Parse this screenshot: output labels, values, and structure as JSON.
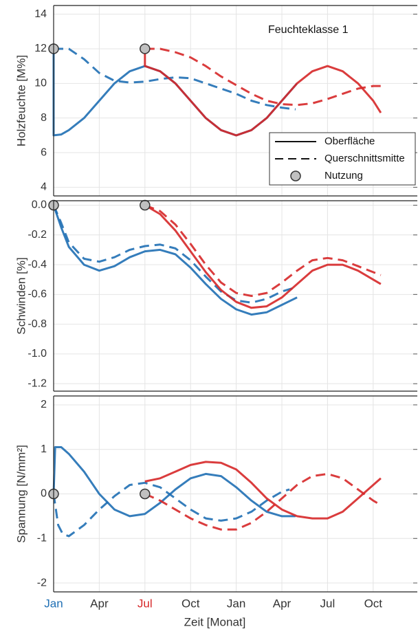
{
  "chart_data": [
    {
      "type": "line",
      "ylabel": "Holzfeuchte [M%]",
      "annotation": "Feuchteklasse 1",
      "xlim": [
        0,
        23.9
      ],
      "ylim": [
        3.5,
        14.5
      ],
      "yticks": [
        4,
        6,
        8,
        10,
        12,
        14
      ],
      "grid": true,
      "legend": {
        "position": "lower right",
        "entries": [
          {
            "label": "Oberfläche",
            "line": "solid"
          },
          {
            "label": "Querschnittsmitte",
            "line": "dashed"
          },
          {
            "label": "Nutzung",
            "marker": "circle"
          }
        ]
      },
      "series": [
        {
          "color": "#1f6fb4",
          "dash": "solid",
          "x": [
            0,
            0,
            0.5,
            1,
            2,
            3,
            4,
            5,
            6,
            7,
            8,
            9,
            10,
            11,
            12,
            13,
            14,
            15,
            16
          ],
          "values": [
            12,
            7,
            7.05,
            7.3,
            8.0,
            9.0,
            10.0,
            10.7,
            11.0,
            10.7,
            10.0,
            9.0,
            8.0,
            7.3,
            7.0,
            7.3,
            8.0,
            9.0,
            10.0
          ]
        },
        {
          "color": "#1f6fb4",
          "dash": "dashed",
          "x": [
            0,
            1,
            2,
            3,
            4,
            5,
            6,
            7,
            8,
            9,
            10,
            11,
            12,
            13,
            14,
            15,
            15.9
          ],
          "values": [
            12,
            12,
            11.4,
            10.6,
            10.15,
            10.05,
            10.1,
            10.25,
            10.35,
            10.3,
            10.0,
            9.7,
            9.4,
            9.0,
            8.75,
            8.6,
            8.5
          ]
        },
        {
          "color": "#d62728",
          "dash": "solid",
          "x": [
            6,
            6,
            7,
            8,
            9,
            10,
            11,
            12,
            13,
            14,
            15,
            16,
            17,
            18,
            19,
            20,
            21,
            21.5
          ],
          "values": [
            12,
            11.0,
            10.7,
            10.0,
            9.0,
            8.0,
            7.3,
            7.0,
            7.3,
            8.0,
            9.0,
            10.0,
            10.7,
            11.0,
            10.7,
            10.0,
            9.0,
            8.3
          ]
        },
        {
          "color": "#d62728",
          "dash": "dashed",
          "x": [
            6,
            7,
            8,
            9,
            10,
            11,
            12,
            13,
            14,
            15,
            16,
            17,
            18,
            19,
            20,
            21,
            21.5
          ],
          "values": [
            12,
            12.0,
            11.8,
            11.5,
            11.0,
            10.4,
            9.9,
            9.4,
            9.0,
            8.8,
            8.75,
            8.85,
            9.1,
            9.4,
            9.7,
            9.85,
            9.85
          ]
        },
        {
          "color": "#c0c0c0",
          "marker": "circle",
          "x": [
            0,
            6
          ],
          "values": [
            12,
            12
          ]
        }
      ]
    },
    {
      "type": "line",
      "ylabel": "Schwinden [%]",
      "xlim": [
        0,
        23.9
      ],
      "ylim": [
        -1.25,
        0.03
      ],
      "grid": true,
      "yticks": [
        {
          "value": 0,
          "label": "0.0"
        },
        {
          "value": -0.2,
          "label": "-0.2"
        },
        {
          "value": -0.4,
          "label": "-0.4"
        },
        {
          "value": -0.6,
          "label": "-0.6"
        },
        {
          "value": -0.8,
          "label": "-0.8"
        },
        {
          "value": -1.0,
          "label": "-1.0"
        },
        {
          "value": -1.2,
          "label": "-1.2"
        }
      ],
      "series": [
        {
          "color": "#1f6fb4",
          "dash": "solid",
          "x": [
            0,
            0.5,
            1,
            2,
            3,
            4,
            5,
            6,
            7,
            8,
            9,
            10,
            11,
            12,
            13,
            14,
            15,
            16
          ],
          "values": [
            0,
            -0.15,
            -0.28,
            -0.4,
            -0.44,
            -0.41,
            -0.35,
            -0.31,
            -0.3,
            -0.33,
            -0.42,
            -0.53,
            -0.63,
            -0.7,
            -0.735,
            -0.72,
            -0.67,
            -0.62
          ]
        },
        {
          "color": "#1f6fb4",
          "dash": "dashed",
          "x": [
            0,
            0.5,
            1,
            2,
            3,
            4,
            5,
            6,
            7,
            8,
            9,
            10,
            11,
            12,
            13,
            14,
            15,
            16
          ],
          "values": [
            0,
            -0.12,
            -0.25,
            -0.36,
            -0.38,
            -0.35,
            -0.3,
            -0.275,
            -0.265,
            -0.29,
            -0.37,
            -0.48,
            -0.58,
            -0.64,
            -0.655,
            -0.63,
            -0.58,
            -0.55
          ]
        },
        {
          "color": "#d62728",
          "dash": "solid",
          "x": [
            6,
            7,
            8,
            9,
            10,
            11,
            12,
            13,
            14,
            15,
            16,
            17,
            18,
            19,
            20,
            21,
            21.5
          ],
          "values": [
            0,
            -0.06,
            -0.17,
            -0.31,
            -0.45,
            -0.57,
            -0.65,
            -0.69,
            -0.68,
            -0.62,
            -0.53,
            -0.44,
            -0.4,
            -0.4,
            -0.44,
            -0.5,
            -0.53
          ]
        },
        {
          "color": "#d62728",
          "dash": "dashed",
          "x": [
            6,
            7,
            8,
            9,
            10,
            11,
            12,
            13,
            14,
            15,
            16,
            17,
            18,
            19,
            20,
            21,
            21.5
          ],
          "values": [
            0,
            -0.04,
            -0.13,
            -0.26,
            -0.4,
            -0.52,
            -0.59,
            -0.61,
            -0.59,
            -0.52,
            -0.44,
            -0.37,
            -0.355,
            -0.37,
            -0.41,
            -0.45,
            -0.47
          ]
        },
        {
          "color": "#c0c0c0",
          "marker": "circle",
          "x": [
            0,
            6
          ],
          "values": [
            0,
            0
          ]
        }
      ]
    },
    {
      "type": "line",
      "ylabel": "Spannung [N/mm²]",
      "xlabel": "Zeit [Monat]",
      "xlim": [
        0,
        23.9
      ],
      "ylim": [
        -2.2,
        2.2
      ],
      "yticks": [
        -2,
        -1,
        0,
        1,
        2
      ],
      "grid": true,
      "xticks": [
        {
          "value": 0,
          "label": "Jan"
        },
        {
          "value": 3,
          "label": "Apr"
        },
        {
          "value": 6,
          "label": "Jul"
        },
        {
          "value": 9,
          "label": "Oct"
        },
        {
          "value": 12,
          "label": "Jan"
        },
        {
          "value": 15,
          "label": "Apr"
        },
        {
          "value": 18,
          "label": "Jul"
        },
        {
          "value": 21,
          "label": "Oct"
        }
      ],
      "xtick_colors": [
        "#1f6fb4",
        "#333333",
        "#d62728",
        "#333333",
        "#333333",
        "#333333",
        "#333333",
        "#333333"
      ],
      "series": [
        {
          "color": "#1f6fb4",
          "dash": "solid",
          "x": [
            0,
            0.1,
            0.5,
            1,
            2,
            3,
            4,
            5,
            6,
            7,
            8,
            9,
            10,
            11,
            12,
            13,
            14,
            15,
            15.9
          ],
          "values": [
            0,
            1.05,
            1.05,
            0.9,
            0.5,
            0.0,
            -0.35,
            -0.5,
            -0.45,
            -0.2,
            0.1,
            0.35,
            0.45,
            0.4,
            0.15,
            -0.15,
            -0.4,
            -0.5,
            -0.5
          ]
        },
        {
          "color": "#1f6fb4",
          "dash": "dashed",
          "x": [
            0,
            0.3,
            0.6,
            1,
            2,
            3,
            4,
            5,
            6,
            7,
            8,
            9,
            10,
            11,
            12,
            13,
            14,
            15,
            15.5
          ],
          "values": [
            0,
            -0.7,
            -0.9,
            -0.95,
            -0.7,
            -0.35,
            -0.05,
            0.2,
            0.25,
            0.15,
            -0.1,
            -0.35,
            -0.55,
            -0.6,
            -0.55,
            -0.4,
            -0.15,
            0.05,
            0.1
          ]
        },
        {
          "color": "#d62728",
          "dash": "solid",
          "x": [
            6,
            7,
            8,
            9,
            10,
            11,
            12,
            13,
            14,
            15,
            16,
            17,
            18,
            19,
            20,
            21,
            21.5
          ],
          "values": [
            0.28,
            0.35,
            0.5,
            0.65,
            0.72,
            0.7,
            0.55,
            0.25,
            -0.1,
            -0.35,
            -0.5,
            -0.55,
            -0.55,
            -0.4,
            -0.1,
            0.2,
            0.35
          ]
        },
        {
          "color": "#d62728",
          "dash": "dashed",
          "x": [
            6,
            7,
            8,
            9,
            10,
            11,
            12,
            13,
            14,
            15,
            16,
            17,
            18,
            19,
            20,
            21,
            21.5
          ],
          "values": [
            0,
            -0.15,
            -0.35,
            -0.55,
            -0.7,
            -0.8,
            -0.8,
            -0.65,
            -0.4,
            -0.1,
            0.2,
            0.4,
            0.45,
            0.35,
            0.1,
            -0.15,
            -0.25
          ]
        },
        {
          "color": "#c0c0c0",
          "marker": "circle",
          "x": [
            0,
            6
          ],
          "values": [
            0,
            0
          ]
        }
      ]
    }
  ]
}
